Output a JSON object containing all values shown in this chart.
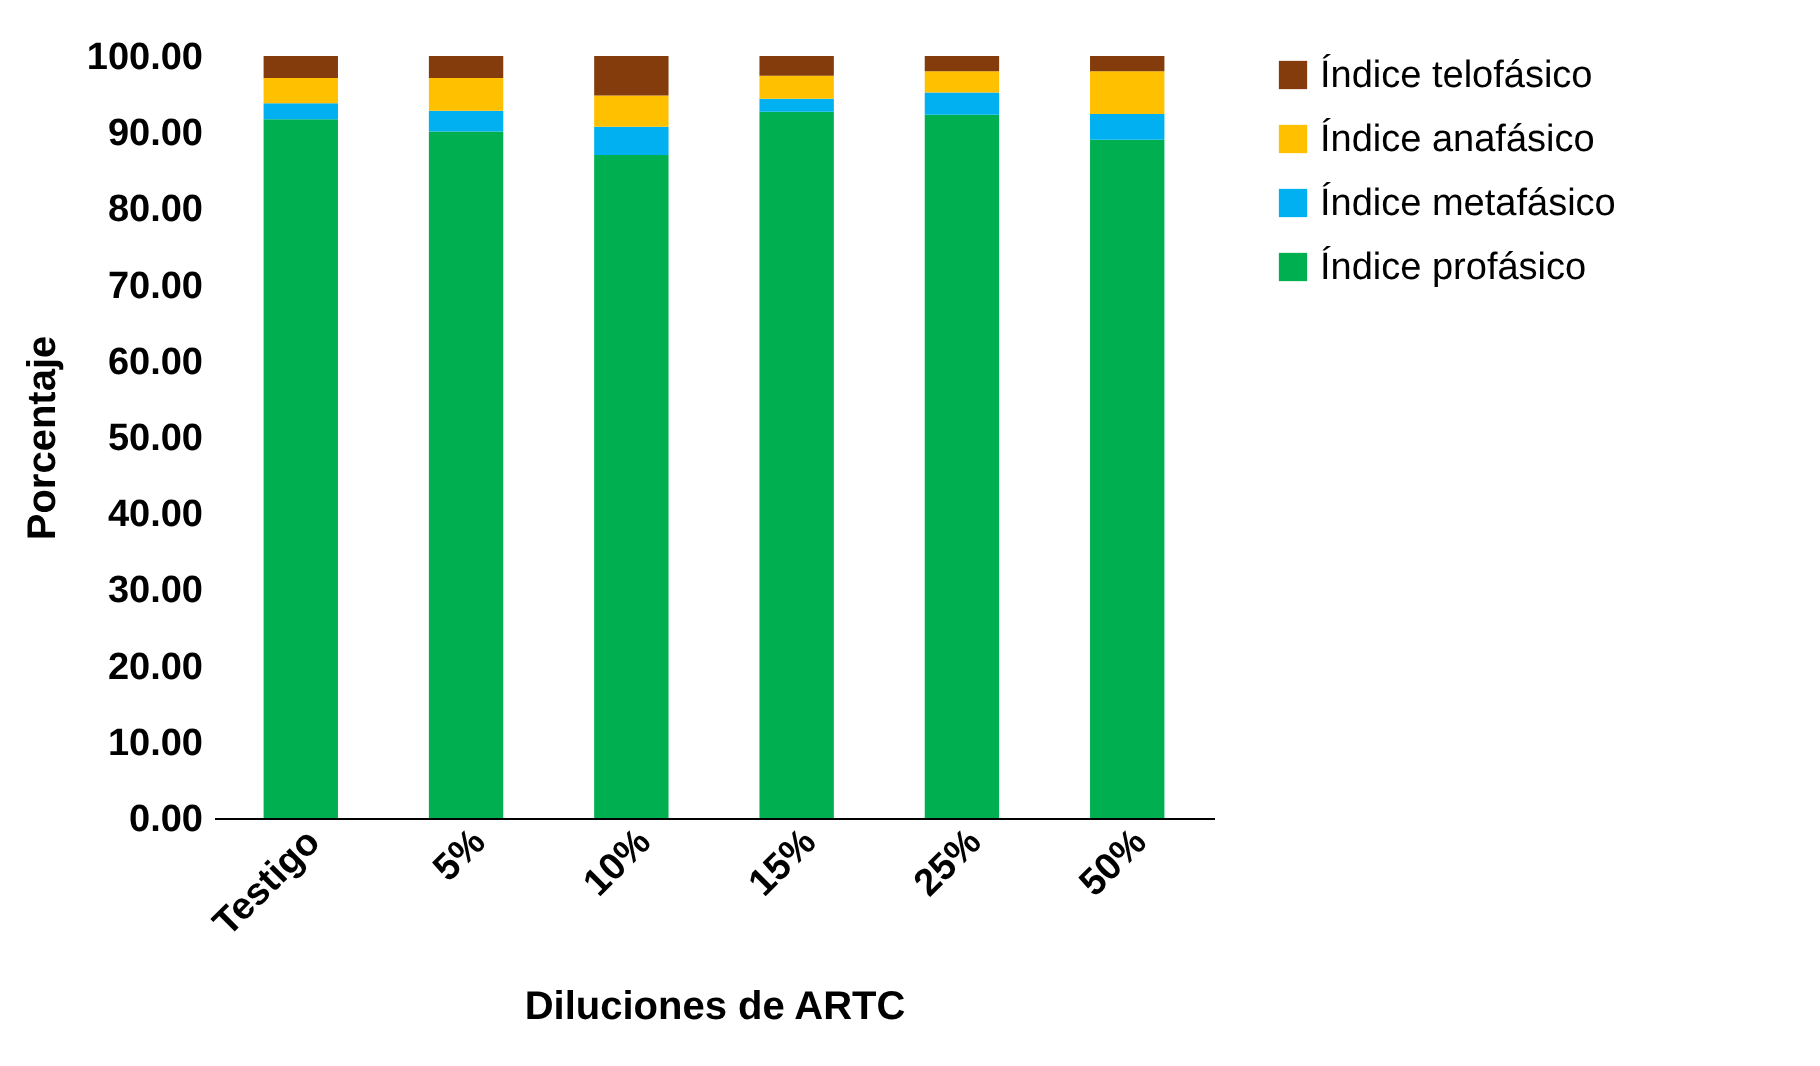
{
  "chart_data": {
    "type": "bar",
    "stacked": true,
    "xlabel": "Diluciones de ARTC",
    "ylabel": "Porcentaje",
    "categories": [
      "Testigo",
      "5%",
      "10%",
      "15%",
      "25%",
      "50%"
    ],
    "series": [
      {
        "name": "Índice profásico",
        "color": "#00b050",
        "values": [
          91.7,
          90.1,
          87.0,
          92.7,
          92.3,
          89.0
        ]
      },
      {
        "name": "Índice metafásico",
        "color": "#00b0f0",
        "values": [
          2.1,
          2.7,
          3.7,
          1.7,
          2.9,
          3.4
        ]
      },
      {
        "name": "Índice anafásico",
        "color": "#ffc000",
        "values": [
          3.3,
          4.3,
          4.1,
          3.0,
          2.8,
          5.6
        ]
      },
      {
        "name": "Índice telofásico",
        "color": "#843c0c",
        "values": [
          2.9,
          2.9,
          5.2,
          2.6,
          2.0,
          2.0
        ]
      }
    ],
    "ylim": [
      0,
      100
    ],
    "yticks": [
      {
        "value": 0,
        "label": "0.00"
      },
      {
        "value": 10,
        "label": "10.00"
      },
      {
        "value": 20,
        "label": "20.00"
      },
      {
        "value": 30,
        "label": "30.00"
      },
      {
        "value": 40,
        "label": "40.00"
      },
      {
        "value": 50,
        "label": "50.00"
      },
      {
        "value": 60,
        "label": "60.00"
      },
      {
        "value": 70,
        "label": "70.00"
      },
      {
        "value": 80,
        "label": "80.00"
      },
      {
        "value": 90,
        "label": "90.00"
      },
      {
        "value": 100,
        "label": "100.00"
      }
    ],
    "grid": false,
    "legend": "right"
  }
}
